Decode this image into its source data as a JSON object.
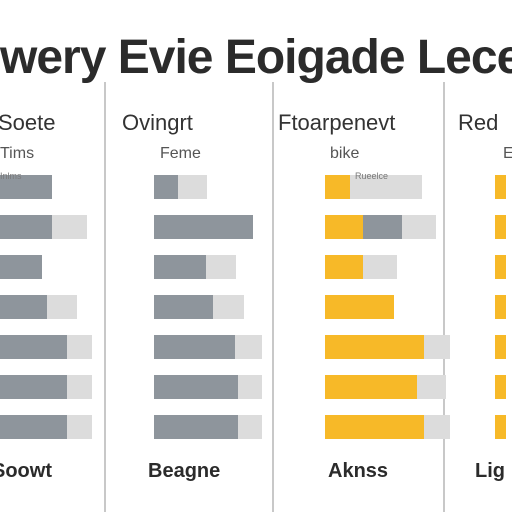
{
  "title": "wery Evie Eoigade Lecer",
  "colors": {
    "gray": "#8e959c",
    "light_gray": "#dcdcdc",
    "yellow": "#f7b928",
    "divider": "#c8c8c8"
  },
  "chart_data": [
    {
      "type": "bar",
      "title": "Soete",
      "subtitle": "Tims",
      "footer": "Soowt",
      "series": [
        {
          "name": "",
          "color": "#8e959c",
          "values": [
            0.6,
            0.6,
            0.5,
            0.55,
            0.75,
            0.75,
            0.75
          ]
        },
        {
          "name": "",
          "color": "#dcdcdc",
          "values": [
            0.0,
            0.35,
            0.0,
            0.3,
            0.25,
            0.25,
            0.25
          ]
        }
      ],
      "annotations": [
        "Inlms"
      ]
    },
    {
      "type": "bar",
      "title": "Ovingrt",
      "subtitle": "Feme",
      "footer": "Beagne",
      "series": [
        {
          "name": "",
          "color": "#8e959c",
          "values": [
            0.22,
            0.92,
            0.48,
            0.55,
            0.75,
            0.78,
            0.78
          ]
        },
        {
          "name": "",
          "color": "#dcdcdc",
          "values": [
            0.27,
            0.0,
            0.28,
            0.28,
            0.25,
            0.22,
            0.22
          ]
        }
      ]
    },
    {
      "type": "bar",
      "title": "Ftoarpenevt",
      "subtitle": "bike",
      "footer": "Aknss",
      "series": [
        {
          "name": "",
          "color": "#f7b928",
          "values": [
            0.22,
            0.34,
            0.34,
            0.62,
            0.88,
            0.82,
            0.88
          ]
        },
        {
          "name": "",
          "color": "#8e959c",
          "values": [
            0.0,
            0.35,
            0.0,
            0.0,
            0.0,
            0.0,
            0.0
          ]
        },
        {
          "name": "",
          "color": "#dcdcdc",
          "values": [
            0.65,
            0.3,
            0.3,
            0.0,
            0.24,
            0.26,
            0.24
          ]
        }
      ],
      "annotations": [
        "Rueelce"
      ]
    },
    {
      "type": "bar",
      "title": "Red",
      "subtitle": "E",
      "footer": "Lig",
      "series": [
        {
          "name": "",
          "color": "#f7b928",
          "values": [
            0.35,
            0.35,
            0.35,
            0.35,
            0.35,
            0.35,
            0.35
          ]
        }
      ]
    }
  ]
}
